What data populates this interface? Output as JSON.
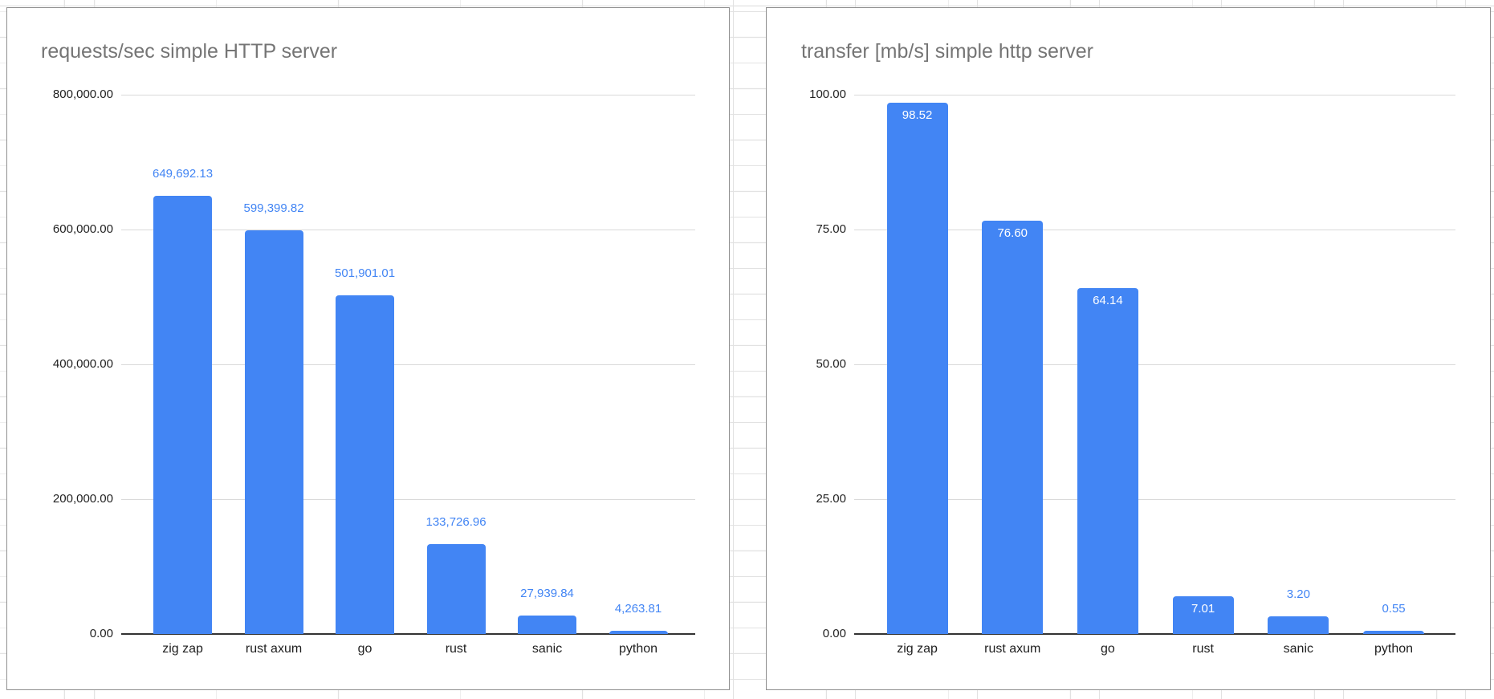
{
  "app": {
    "description": "spreadsheet with two embedded bar charts"
  },
  "colors": {
    "bar": "#4285f4",
    "data_label": "#4285f4",
    "data_label_inside": "#ffffff",
    "chart_title": "#757575",
    "axis_text": "#1f1f1f",
    "gridline": "#d9d9d9",
    "axis_line": "#333333",
    "panel_border": "#8f8f8f",
    "sheet_gridline": "#e2e2e2"
  },
  "chart_data": [
    {
      "type": "bar",
      "title": "requests/sec simple HTTP server",
      "categories": [
        "zig zap",
        "rust axum",
        "go",
        "rust",
        "sanic",
        "python"
      ],
      "values": [
        649692.13,
        599399.82,
        501901.01,
        133726.96,
        27939.84,
        4263.81
      ],
      "data_labels": [
        "649,692.13",
        "599,399.82",
        "501,901.01",
        "133,726.96",
        "27,939.84",
        "4,263.81"
      ],
      "label_placement": [
        "above",
        "above",
        "above",
        "above",
        "above",
        "above"
      ],
      "xlabel": "",
      "ylabel": "",
      "ylim": [
        0,
        800000
      ],
      "yticks": [
        {
          "value": 800000,
          "label": "800,000.00"
        },
        {
          "value": 600000,
          "label": "600,000.00"
        },
        {
          "value": 400000,
          "label": "400,000.00"
        },
        {
          "value": 200000,
          "label": "200,000.00"
        },
        {
          "value": 0,
          "label": "0.00"
        }
      ],
      "grid": "horizontal",
      "legend": "none"
    },
    {
      "type": "bar",
      "title": "transfer [mb/s] simple http server",
      "categories": [
        "zig zap",
        "rust axum",
        "go",
        "rust",
        "sanic",
        "python"
      ],
      "values": [
        98.52,
        76.6,
        64.14,
        7.01,
        3.2,
        0.55
      ],
      "data_labels": [
        "98.52",
        "76.60",
        "64.14",
        "7.01",
        "3.20",
        "0.55"
      ],
      "label_placement": [
        "inside",
        "inside",
        "inside",
        "inside",
        "above",
        "above"
      ],
      "xlabel": "",
      "ylabel": "",
      "ylim": [
        0,
        100
      ],
      "yticks": [
        {
          "value": 100,
          "label": "100.00"
        },
        {
          "value": 75,
          "label": "75.00"
        },
        {
          "value": 50,
          "label": "50.00"
        },
        {
          "value": 25,
          "label": "25.00"
        },
        {
          "value": 0,
          "label": "0.00"
        }
      ],
      "grid": "horizontal",
      "legend": "none"
    }
  ]
}
